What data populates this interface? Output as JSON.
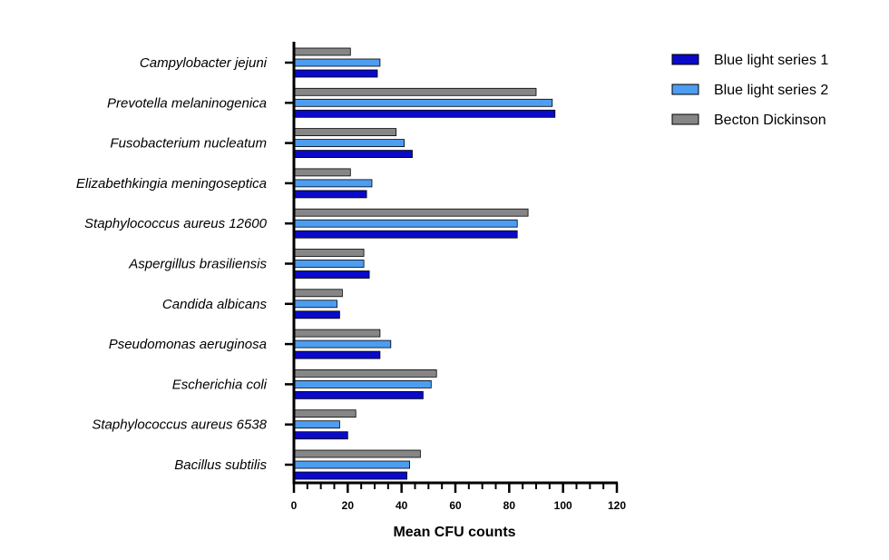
{
  "chart_data": {
    "type": "bar",
    "orientation": "horizontal",
    "xlabel": "Mean CFU counts",
    "xlim": [
      0,
      120
    ],
    "x_ticks": [
      0,
      20,
      40,
      60,
      80,
      100,
      120
    ],
    "x_minor_step": 5,
    "grid": false,
    "legend_position": "top-right",
    "categories": [
      "Campylobacter jejuni",
      "Prevotella melaninogenica",
      "Fusobacterium nucleatum",
      "Elizabethkingia meningoseptica",
      "Staphylococcus aureus 12600",
      "Aspergillus brasiliensis",
      "Candida albicans",
      "Pseudomonas aeruginosa",
      "Escherichia coli",
      "Staphylococcus aureus 6538",
      "Bacillus subtilis"
    ],
    "series": [
      {
        "name": "Blue light series 1",
        "color": "#0a0ac8",
        "values": [
          31,
          97,
          44,
          27,
          83,
          28,
          17,
          32,
          48,
          20,
          42
        ]
      },
      {
        "name": "Blue light series 2",
        "color": "#4d9df0",
        "values": [
          32,
          96,
          41,
          29,
          83,
          26,
          16,
          36,
          51,
          17,
          43
        ]
      },
      {
        "name": "Becton Dickinson",
        "color": "#868686",
        "values": [
          21,
          90,
          38,
          21,
          87,
          26,
          18,
          32,
          53,
          23,
          47
        ]
      }
    ]
  }
}
